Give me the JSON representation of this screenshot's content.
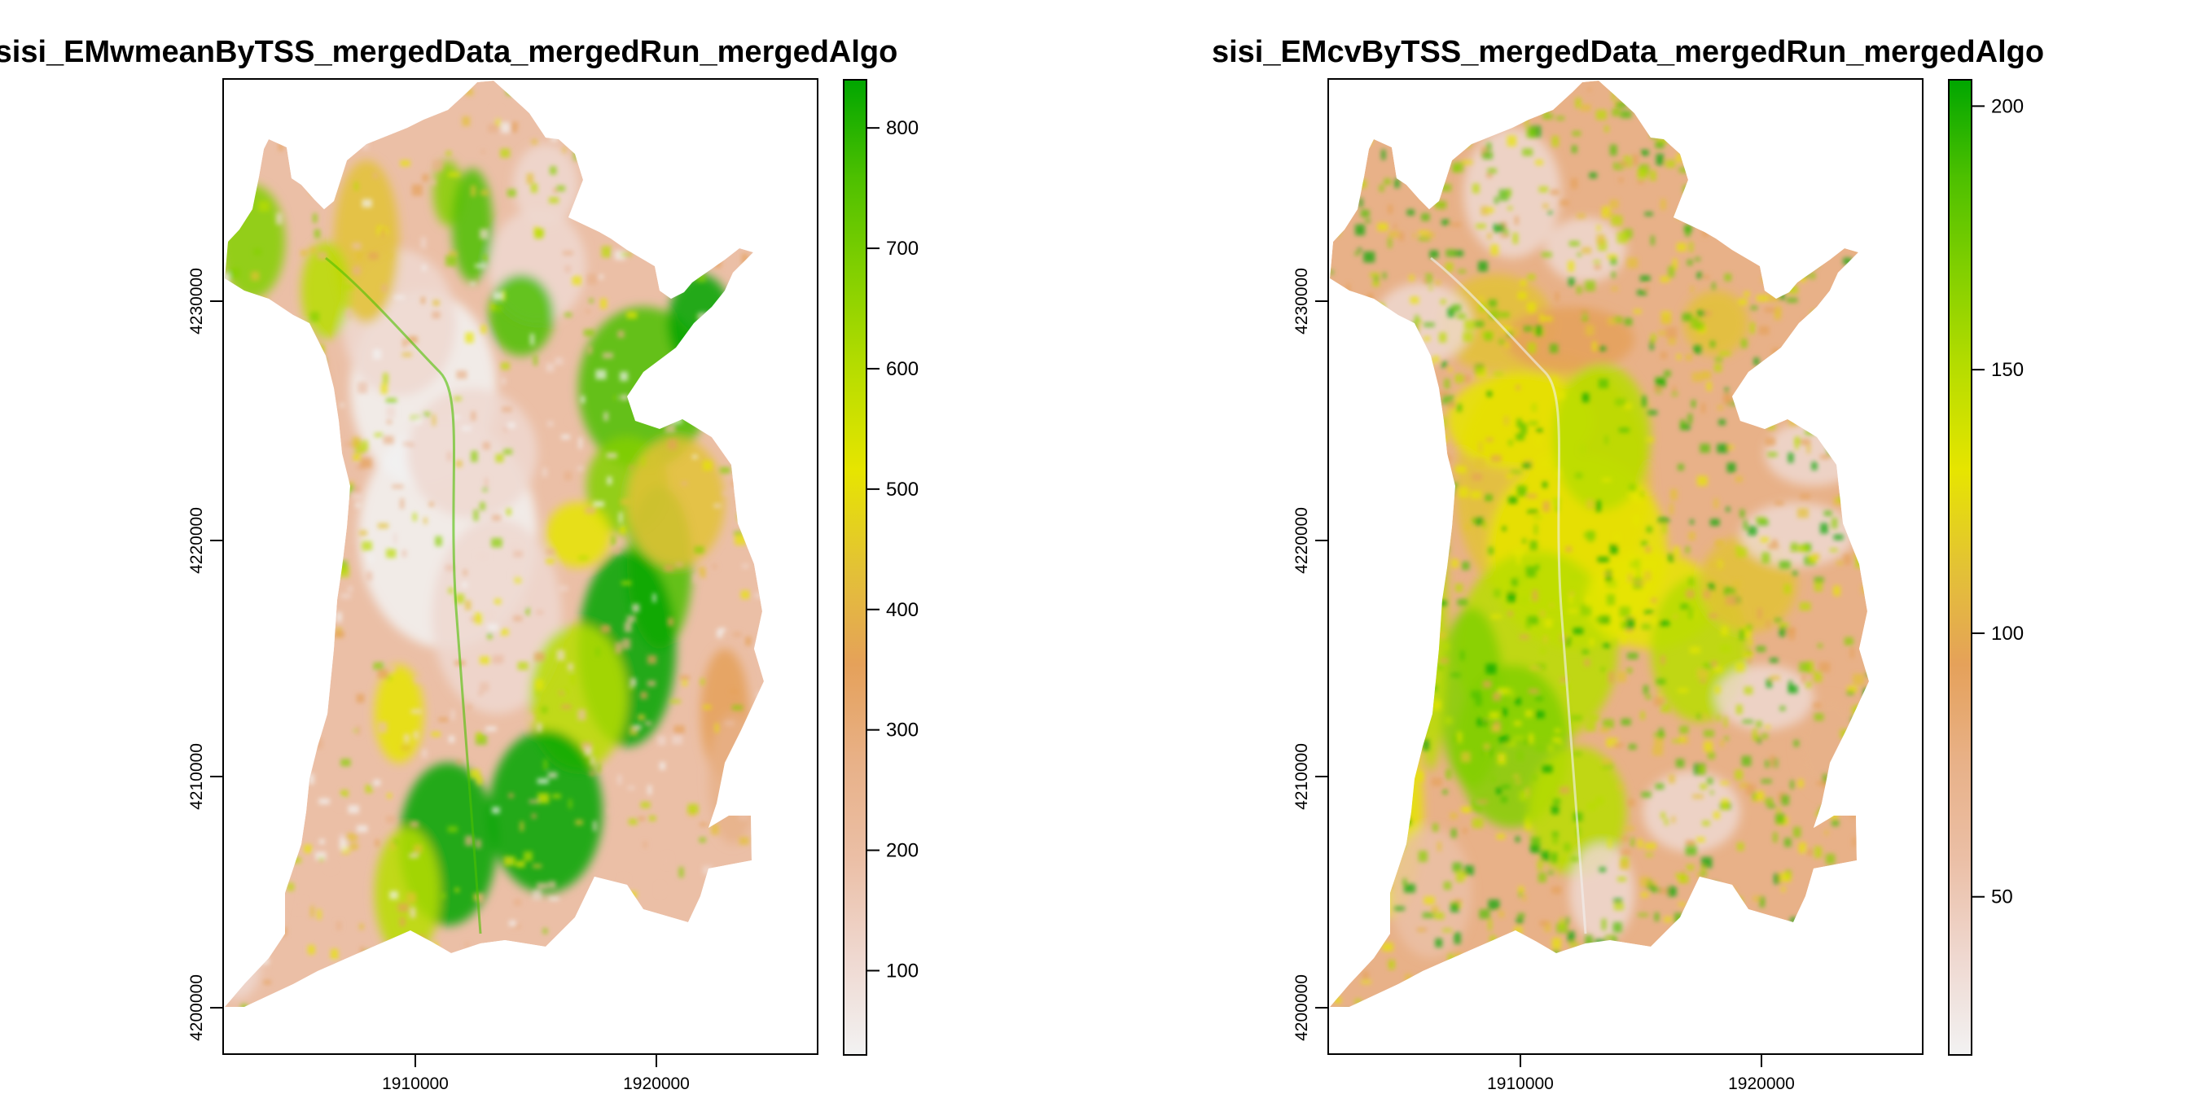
{
  "colors": {
    "ramp": [
      "#F2F2F2",
      "#EFD8D0",
      "#EBBFA6",
      "#E8B188",
      "#E5A15A",
      "#E3C235",
      "#E6E500",
      "#B8DD00",
      "#84D000",
      "#4DC000",
      "#00A600"
    ],
    "outline": "#000000"
  },
  "maps": [
    {
      "title": "sisi_EMwmeanByTSS_mergedData_mergedRun_mergedAlgo",
      "x_ticks": [
        "1910000",
        "1920000"
      ],
      "y_ticks": [
        "4200000",
        "4210000",
        "4220000",
        "4230000"
      ],
      "legend_ticks": [
        "100",
        "200",
        "300",
        "400",
        "500",
        "600",
        "700",
        "800"
      ],
      "legend_range": [
        30,
        840
      ],
      "pattern": "wmean"
    },
    {
      "title": "sisi_EMcvByTSS_mergedData_mergedRun_mergedAlgo",
      "x_ticks": [
        "1910000",
        "1920000"
      ],
      "y_ticks": [
        "4200000",
        "4210000",
        "4220000",
        "4230000"
      ],
      "legend_ticks": [
        "50",
        "100",
        "150",
        "200"
      ],
      "legend_range": [
        20,
        205
      ],
      "pattern": "cv"
    }
  ]
}
